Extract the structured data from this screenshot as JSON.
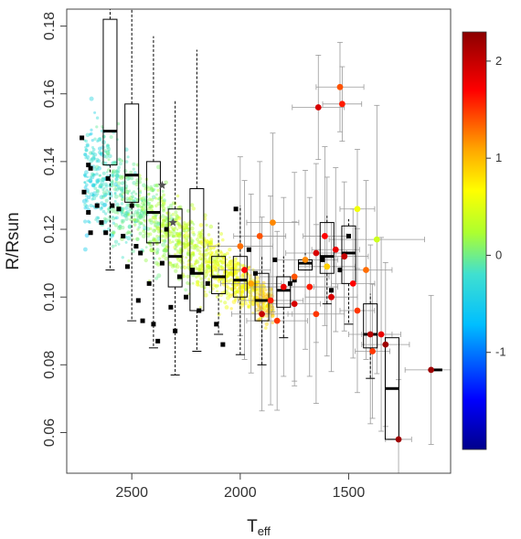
{
  "chart_data": {
    "type": "scatter",
    "title": "",
    "xlabel": "T",
    "xlabel_sub": "eff",
    "ylabel": "R/Rsun",
    "x_reversed": true,
    "xlim": [
      2800,
      1030
    ],
    "ylim": [
      0.048,
      0.185
    ],
    "x_ticks": [
      2500,
      2000,
      1500
    ],
    "y_ticks": [
      0.06,
      0.08,
      0.1,
      0.12,
      0.14,
      0.16,
      0.18
    ],
    "x_tick_labels": [
      "2500",
      "2000",
      "1500"
    ],
    "y_tick_labels": [
      "0.06",
      "0.08",
      "0.10",
      "0.12",
      "0.14",
      "0.16",
      "0.18"
    ],
    "grid": false,
    "colorbar": {
      "range": [
        -2.0,
        2.3
      ],
      "ticks": [
        2,
        1,
        0,
        -1
      ],
      "tick_labels": [
        "2",
        "1",
        "0",
        "-1"
      ],
      "colormap": [
        "#00008b",
        "#0000ff",
        "#00bfff",
        "#40e0d0",
        "#adff2f",
        "#ffff00",
        "#ffa500",
        "#ff0000",
        "#8b0000"
      ]
    },
    "boxplots": [
      {
        "x": 2600,
        "q1": 0.139,
        "median": 0.149,
        "q3": 0.182,
        "whisker_low": 0.108,
        "whisker_high": 0.185
      },
      {
        "x": 2500,
        "q1": 0.128,
        "median": 0.136,
        "q3": 0.157,
        "whisker_low": 0.093,
        "whisker_high": 0.185
      },
      {
        "x": 2400,
        "q1": 0.116,
        "median": 0.125,
        "q3": 0.14,
        "whisker_low": 0.085,
        "whisker_high": 0.177
      },
      {
        "x": 2300,
        "q1": 0.103,
        "median": 0.112,
        "q3": 0.126,
        "whisker_low": 0.077,
        "whisker_high": 0.158
      },
      {
        "x": 2200,
        "q1": 0.096,
        "median": 0.107,
        "q3": 0.132,
        "whisker_low": 0.084,
        "whisker_high": 0.173
      },
      {
        "x": 2100,
        "q1": 0.101,
        "median": 0.106,
        "q3": 0.112,
        "whisker_low": 0.089,
        "whisker_high": 0.122
      },
      {
        "x": 2000,
        "q1": 0.1,
        "median": 0.105,
        "q3": 0.112,
        "whisker_low": 0.083,
        "whisker_high": 0.127
      },
      {
        "x": 1900,
        "q1": 0.093,
        "median": 0.099,
        "q3": 0.107,
        "whisker_low": 0.08,
        "whisker_high": 0.112
      },
      {
        "x": 1800,
        "q1": 0.097,
        "median": 0.102,
        "q3": 0.106,
        "whisker_low": 0.088,
        "whisker_high": 0.112
      },
      {
        "x": 1700,
        "q1": 0.108,
        "median": 0.11,
        "q3": 0.111,
        "whisker_low": 0.108,
        "whisker_high": 0.113
      },
      {
        "x": 1600,
        "q1": 0.107,
        "median": 0.112,
        "q3": 0.122,
        "whisker_low": 0.098,
        "whisker_high": 0.124
      },
      {
        "x": 1500,
        "q1": 0.104,
        "median": 0.113,
        "q3": 0.121,
        "whisker_low": 0.092,
        "whisker_high": 0.123
      },
      {
        "x": 1400,
        "q1": 0.085,
        "median": 0.089,
        "q3": 0.098,
        "whisker_low": 0.076,
        "whisker_high": 0.101
      },
      {
        "x": 1300,
        "q1": 0.058,
        "median": 0.073,
        "q3": 0.088,
        "whisker_low": 0.058,
        "whisker_high": 0.088
      },
      {
        "x": 1100,
        "q1": 0.0785,
        "median": 0.0785,
        "q3": 0.0785,
        "whisker_low": 0.0785,
        "whisker_high": 0.0785
      }
    ],
    "black_squares": [
      {
        "x": 2730,
        "y": 0.147
      },
      {
        "x": 2700,
        "y": 0.139
      },
      {
        "x": 2690,
        "y": 0.138
      },
      {
        "x": 2720,
        "y": 0.131
      },
      {
        "x": 2700,
        "y": 0.125
      },
      {
        "x": 2690,
        "y": 0.119
      },
      {
        "x": 2660,
        "y": 0.127
      },
      {
        "x": 2640,
        "y": 0.122
      },
      {
        "x": 2620,
        "y": 0.119
      },
      {
        "x": 2610,
        "y": 0.135
      },
      {
        "x": 2590,
        "y": 0.127
      },
      {
        "x": 2560,
        "y": 0.126
      },
      {
        "x": 2540,
        "y": 0.118
      },
      {
        "x": 2520,
        "y": 0.109
      },
      {
        "x": 2500,
        "y": 0.127
      },
      {
        "x": 2480,
        "y": 0.115
      },
      {
        "x": 2470,
        "y": 0.099
      },
      {
        "x": 2460,
        "y": 0.113
      },
      {
        "x": 2450,
        "y": 0.093
      },
      {
        "x": 2420,
        "y": 0.104
      },
      {
        "x": 2400,
        "y": 0.092
      },
      {
        "x": 2380,
        "y": 0.087
      },
      {
        "x": 2360,
        "y": 0.11
      },
      {
        "x": 2340,
        "y": 0.12
      },
      {
        "x": 2320,
        "y": 0.097
      },
      {
        "x": 2300,
        "y": 0.09
      },
      {
        "x": 2280,
        "y": 0.106
      },
      {
        "x": 2250,
        "y": 0.1
      },
      {
        "x": 2220,
        "y": 0.108
      },
      {
        "x": 2190,
        "y": 0.096
      },
      {
        "x": 2150,
        "y": 0.104
      },
      {
        "x": 2110,
        "y": 0.092
      },
      {
        "x": 2080,
        "y": 0.086
      },
      {
        "x": 2020,
        "y": 0.126
      },
      {
        "x": 1960,
        "y": 0.114
      },
      {
        "x": 1930,
        "y": 0.107
      },
      {
        "x": 1840,
        "y": 0.111
      },
      {
        "x": 1770,
        "y": 0.104
      },
      {
        "x": 1750,
        "y": 0.105
      },
      {
        "x": 1620,
        "y": 0.111
      },
      {
        "x": 1580,
        "y": 0.102
      },
      {
        "x": 1540,
        "y": 0.108
      },
      {
        "x": 1500,
        "y": 0.118
      }
    ],
    "stars": [
      {
        "x": 2360,
        "y": 0.133
      },
      {
        "x": 2310,
        "y": 0.122
      }
    ],
    "errorbar_points": [
      {
        "x": 1540,
        "y": 0.162,
        "xerr": 110,
        "yerr": 0.006,
        "c": 1.4
      },
      {
        "x": 1640,
        "y": 0.156,
        "xerr": 120,
        "yerr": 0.007,
        "c": 1.9
      },
      {
        "x": 1530,
        "y": 0.157,
        "xerr": 90,
        "yerr": 0.005,
        "c": 1.6
      },
      {
        "x": 1370,
        "y": 0.117,
        "xerr": 220,
        "yerr": 0.018,
        "c": 0.4
      },
      {
        "x": 1460,
        "y": 0.126,
        "xerr": 80,
        "yerr": 0.008,
        "c": 0.6
      },
      {
        "x": 1610,
        "y": 0.118,
        "xerr": 100,
        "yerr": 0.012,
        "c": 1.7
      },
      {
        "x": 1520,
        "y": 0.112,
        "xerr": 110,
        "yerr": 0.01,
        "c": 2.0
      },
      {
        "x": 1420,
        "y": 0.108,
        "xerr": 120,
        "yerr": 0.012,
        "c": 1.3
      },
      {
        "x": 1580,
        "y": 0.1,
        "xerr": 120,
        "yerr": 0.01,
        "c": 1.9
      },
      {
        "x": 1460,
        "y": 0.096,
        "xerr": 80,
        "yerr": 0.011,
        "c": 1.5
      },
      {
        "x": 1400,
        "y": 0.089,
        "xerr": 100,
        "yerr": 0.012,
        "c": 2.1
      },
      {
        "x": 1350,
        "y": 0.089,
        "xerr": 90,
        "yerr": 0.013,
        "c": 1.8
      },
      {
        "x": 1330,
        "y": 0.086,
        "xerr": 110,
        "yerr": 0.011,
        "c": 2.2
      },
      {
        "x": 1390,
        "y": 0.084,
        "xerr": 80,
        "yerr": 0.009,
        "c": 1.5
      },
      {
        "x": 1270,
        "y": 0.058,
        "xerr": 60,
        "yerr": 0.008,
        "c": 2.2
      },
      {
        "x": 1120,
        "y": 0.0785,
        "xerr": 120,
        "yerr": 0.01,
        "c": 2.2
      },
      {
        "x": 1650,
        "y": 0.113,
        "xerr": 140,
        "yerr": 0.012,
        "c": 1.9
      },
      {
        "x": 1700,
        "y": 0.111,
        "xerr": 150,
        "yerr": 0.012,
        "c": 1.2
      },
      {
        "x": 1750,
        "y": 0.106,
        "xerr": 160,
        "yerr": 0.014,
        "c": 1.4
      },
      {
        "x": 1800,
        "y": 0.103,
        "xerr": 140,
        "yerr": 0.012,
        "c": 1.8
      },
      {
        "x": 1860,
        "y": 0.099,
        "xerr": 150,
        "yerr": 0.014,
        "c": 1.6
      },
      {
        "x": 1900,
        "y": 0.095,
        "xerr": 140,
        "yerr": 0.013,
        "c": 2.0
      },
      {
        "x": 1950,
        "y": 0.104,
        "xerr": 140,
        "yerr": 0.012,
        "c": 1.1
      },
      {
        "x": 1980,
        "y": 0.108,
        "xerr": 120,
        "yerr": 0.012,
        "c": 1.7
      },
      {
        "x": 2000,
        "y": 0.115,
        "xerr": 150,
        "yerr": 0.012,
        "c": 1.3
      },
      {
        "x": 1830,
        "y": 0.093,
        "xerr": 140,
        "yerr": 0.012,
        "c": 1.5
      },
      {
        "x": 1750,
        "y": 0.098,
        "xerr": 120,
        "yerr": 0.011,
        "c": 1.9
      },
      {
        "x": 1680,
        "y": 0.103,
        "xerr": 130,
        "yerr": 0.012,
        "c": 1.6
      },
      {
        "x": 1600,
        "y": 0.109,
        "xerr": 130,
        "yerr": 0.012,
        "c": 0.9
      },
      {
        "x": 1560,
        "y": 0.114,
        "xerr": 110,
        "yerr": 0.011,
        "c": 1.8
      },
      {
        "x": 1650,
        "y": 0.095,
        "xerr": 130,
        "yerr": 0.012,
        "c": 1.5
      },
      {
        "x": 1480,
        "y": 0.104,
        "xerr": 100,
        "yerr": 0.01,
        "c": 1.7
      },
      {
        "x": 1910,
        "y": 0.118,
        "xerr": 120,
        "yerr": 0.01,
        "c": 1.4
      },
      {
        "x": 1850,
        "y": 0.122,
        "xerr": 120,
        "yerr": 0.012,
        "c": 1.2
      }
    ],
    "field_sample": {
      "count": 1400,
      "seed": 7,
      "x_range": [
        1850,
        2720
      ],
      "description_values": "dense background of small points colored by the colorbar scale"
    }
  }
}
